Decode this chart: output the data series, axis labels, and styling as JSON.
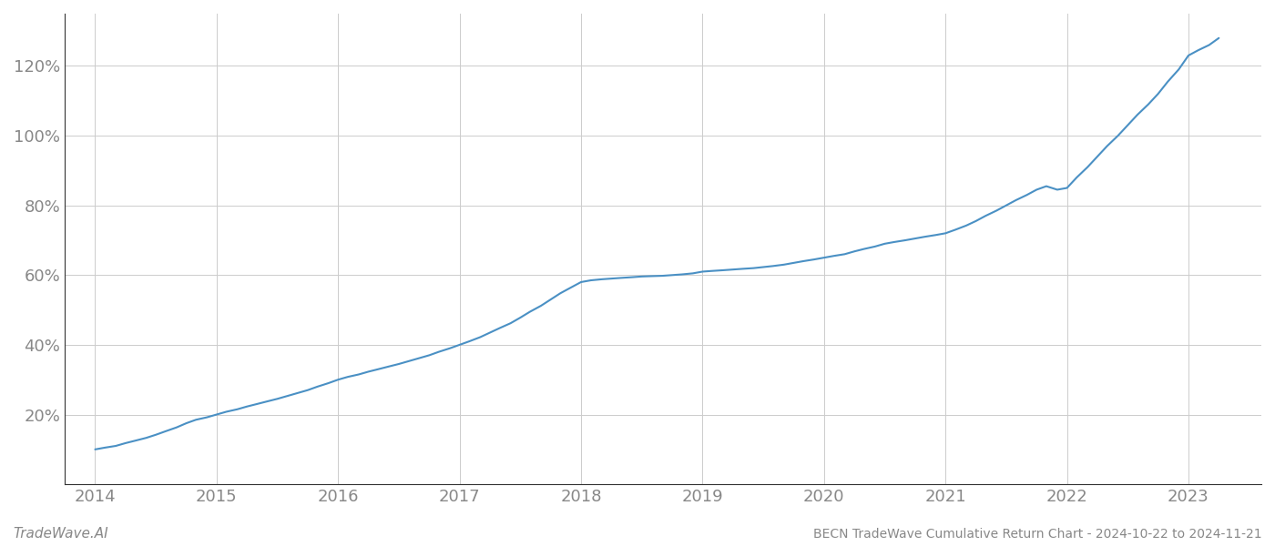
{
  "title": "BECN TradeWave Cumulative Return Chart - 2024-10-22 to 2024-11-21",
  "watermark": "TradeWave.AI",
  "line_color": "#4a90c4",
  "background_color": "#ffffff",
  "grid_color": "#cccccc",
  "x_values": [
    2014.0,
    2014.08,
    2014.17,
    2014.25,
    2014.33,
    2014.42,
    2014.5,
    2014.58,
    2014.67,
    2014.75,
    2014.83,
    2014.92,
    2015.0,
    2015.08,
    2015.17,
    2015.25,
    2015.33,
    2015.42,
    2015.5,
    2015.58,
    2015.67,
    2015.75,
    2015.83,
    2015.92,
    2016.0,
    2016.08,
    2016.17,
    2016.25,
    2016.33,
    2016.42,
    2016.5,
    2016.58,
    2016.67,
    2016.75,
    2016.83,
    2016.92,
    2017.0,
    2017.08,
    2017.17,
    2017.25,
    2017.33,
    2017.42,
    2017.5,
    2017.58,
    2017.67,
    2017.75,
    2017.83,
    2017.92,
    2018.0,
    2018.08,
    2018.17,
    2018.25,
    2018.33,
    2018.42,
    2018.5,
    2018.58,
    2018.67,
    2018.75,
    2018.83,
    2018.92,
    2019.0,
    2019.08,
    2019.17,
    2019.25,
    2019.33,
    2019.42,
    2019.5,
    2019.58,
    2019.67,
    2019.75,
    2019.83,
    2019.92,
    2020.0,
    2020.08,
    2020.17,
    2020.25,
    2020.33,
    2020.42,
    2020.5,
    2020.58,
    2020.67,
    2020.75,
    2020.83,
    2020.92,
    2021.0,
    2021.08,
    2021.17,
    2021.25,
    2021.33,
    2021.42,
    2021.5,
    2021.58,
    2021.67,
    2021.75,
    2021.83,
    2021.92,
    2022.0,
    2022.08,
    2022.17,
    2022.25,
    2022.33,
    2022.42,
    2022.5,
    2022.58,
    2022.67,
    2022.75,
    2022.83,
    2022.92,
    2023.0,
    2023.08,
    2023.17,
    2023.25
  ],
  "y_values": [
    10.0,
    10.5,
    11.0,
    11.8,
    12.5,
    13.3,
    14.2,
    15.2,
    16.3,
    17.5,
    18.5,
    19.2,
    20.0,
    20.8,
    21.5,
    22.3,
    23.0,
    23.8,
    24.5,
    25.3,
    26.2,
    27.0,
    28.0,
    29.0,
    30.0,
    30.8,
    31.5,
    32.3,
    33.0,
    33.8,
    34.5,
    35.3,
    36.2,
    37.0,
    38.0,
    39.0,
    40.0,
    41.0,
    42.2,
    43.5,
    44.8,
    46.2,
    47.8,
    49.5,
    51.2,
    53.0,
    54.8,
    56.5,
    58.0,
    58.5,
    58.8,
    59.0,
    59.2,
    59.4,
    59.6,
    59.7,
    59.8,
    60.0,
    60.2,
    60.5,
    61.0,
    61.2,
    61.4,
    61.6,
    61.8,
    62.0,
    62.3,
    62.6,
    63.0,
    63.5,
    64.0,
    64.5,
    65.0,
    65.5,
    66.0,
    66.8,
    67.5,
    68.2,
    69.0,
    69.5,
    70.0,
    70.5,
    71.0,
    71.5,
    72.0,
    73.0,
    74.2,
    75.5,
    77.0,
    78.5,
    80.0,
    81.5,
    83.0,
    84.5,
    85.5,
    84.5,
    85.0,
    88.0,
    91.0,
    94.0,
    97.0,
    100.0,
    103.0,
    106.0,
    109.0,
    112.0,
    115.5,
    119.0,
    123.0,
    124.5,
    126.0,
    128.0
  ],
  "yticks": [
    20,
    40,
    60,
    80,
    100,
    120
  ],
  "xticks": [
    2014,
    2015,
    2016,
    2017,
    2018,
    2019,
    2020,
    2021,
    2022,
    2023
  ],
  "xlim": [
    2013.75,
    2023.6
  ],
  "ylim": [
    0,
    135
  ],
  "line_width": 1.5,
  "title_fontsize": 10,
  "tick_fontsize": 13,
  "watermark_fontsize": 11,
  "axis_label_color": "#888888",
  "spine_color": "#333333"
}
